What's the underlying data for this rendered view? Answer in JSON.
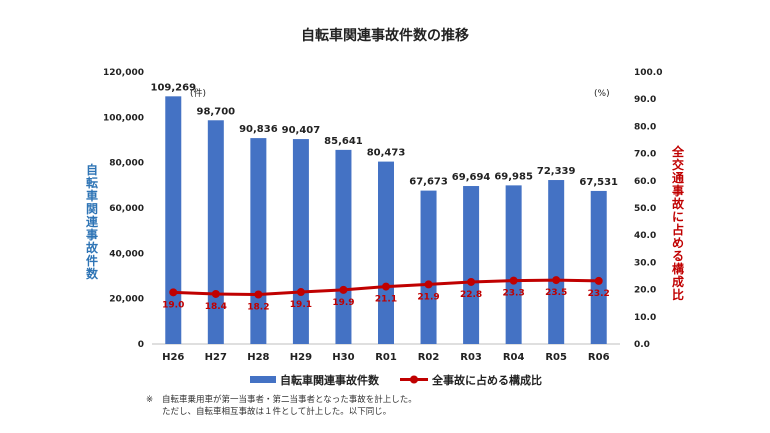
{
  "chart_data": {
    "type": "bar+line",
    "title": "自転車関連事故件数の推移",
    "categories": [
      "H26",
      "H27",
      "H28",
      "H29",
      "H30",
      "R01",
      "R02",
      "R03",
      "R04",
      "R05",
      "R06"
    ],
    "series": [
      {
        "name": "自転車関連事故件数",
        "type": "bar",
        "axis": "left",
        "color": "#4472c4",
        "values": [
          109269,
          98700,
          90836,
          90407,
          85641,
          80473,
          67673,
          69694,
          69985,
          72339,
          67531
        ],
        "labels": [
          "109,269",
          "98,700",
          "90,836",
          "90,407",
          "85,641",
          "80,473",
          "67,673",
          "69,694",
          "69,985",
          "72,339",
          "67,531"
        ]
      },
      {
        "name": "全事故に占める構成比",
        "type": "line",
        "axis": "right",
        "color": "#c00000",
        "values": [
          19.0,
          18.4,
          18.2,
          19.1,
          19.9,
          21.1,
          21.9,
          22.8,
          23.3,
          23.5,
          23.2
        ],
        "labels": [
          "19.0",
          "18.4",
          "18.2",
          "19.1",
          "19.9",
          "21.1",
          "21.9",
          "22.8",
          "23.3",
          "23.5",
          "23.2"
        ]
      }
    ],
    "y_left": {
      "label": "自転車関連事故件数",
      "unit": "(件)",
      "range": [
        0,
        120000
      ],
      "ticks": [
        "0",
        "20,000",
        "40,000",
        "60,000",
        "80,000",
        "100,000",
        "120,000"
      ]
    },
    "y_right": {
      "label": "全交通事故に占める構成比",
      "unit": "(%)",
      "range": [
        0,
        100
      ],
      "ticks": [
        "0.0",
        "10.0",
        "20.0",
        "30.0",
        "40.0",
        "50.0",
        "60.0",
        "70.0",
        "80.0",
        "90.0",
        "100.0"
      ]
    },
    "grid": false,
    "legend": "bottom"
  },
  "notes": {
    "mark": "※",
    "line1": "自転車乗用車が第一当事者・第二当事者となった事故を計上した。",
    "line2": "ただし、自転車相互事故は１件として計上した。以下同じ。"
  }
}
